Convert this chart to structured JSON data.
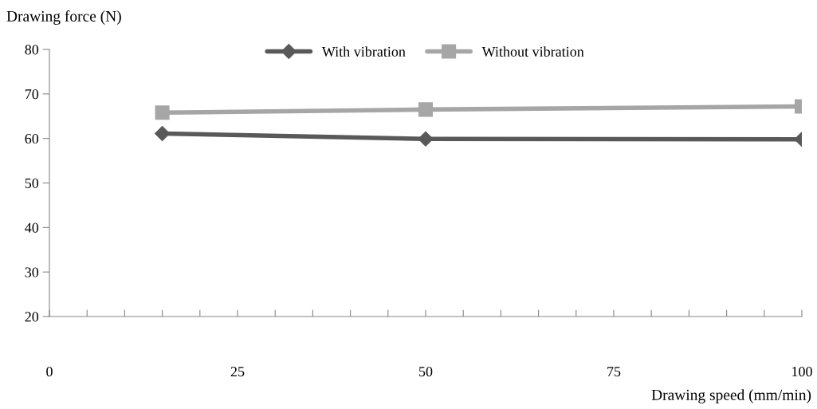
{
  "chart_data": {
    "type": "line",
    "xlabel": "Drawing speed (mm/min)",
    "ylabel": "Drawing force (N)",
    "x": [
      15,
      50,
      100
    ],
    "series": [
      {
        "name": "With vibration",
        "color": "#595959",
        "values": [
          61.1,
          59.9,
          59.8
        ],
        "marker": "diamond"
      },
      {
        "name": "Without vibration",
        "color": "#a6a6a6",
        "values": [
          65.8,
          66.5,
          67.2
        ],
        "marker": "square"
      }
    ],
    "xlim": [
      0,
      100
    ],
    "ylim": [
      20,
      80
    ],
    "xticks": [
      0,
      {
        "value": 5,
        "label": null
      },
      {
        "value": 10,
        "label": null
      },
      {
        "value": 15,
        "label": null
      },
      {
        "value": 20,
        "label": null
      },
      25,
      {
        "value": 30,
        "label": null
      },
      {
        "value": 35,
        "label": null
      },
      {
        "value": 40,
        "label": null
      },
      {
        "value": 45,
        "label": null
      },
      50,
      {
        "value": 55,
        "label": null
      },
      {
        "value": 60,
        "label": null
      },
      {
        "value": 65,
        "label": null
      },
      {
        "value": 70,
        "label": null
      },
      75,
      {
        "value": 80,
        "label": null
      },
      {
        "value": 85,
        "label": null
      },
      {
        "value": 90,
        "label": null
      },
      {
        "value": 95,
        "label": null
      },
      100
    ],
    "yticks": [
      20,
      30,
      40,
      50,
      60,
      70,
      80
    ],
    "grid": false,
    "legend": "top",
    "line_style": "solid"
  }
}
